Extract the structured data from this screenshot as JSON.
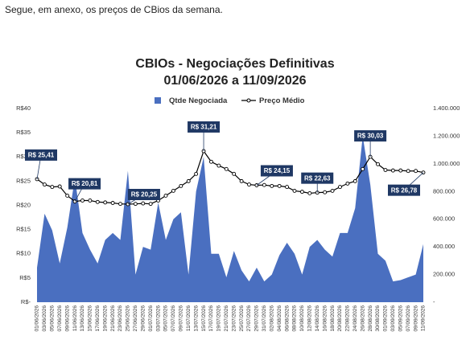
{
  "message": "Segue, em anexo, os preços de CBios da semana.",
  "chart_data": {
    "type": "combo",
    "title": "CBIOs - Negociações Definitivas",
    "subtitle": "01/06/2026 a 11/09/2026",
    "categories": [
      "01/06/2026",
      "03/06/2026",
      "05/06/2026",
      "07/06/2026",
      "09/06/2026",
      "11/06/2026",
      "13/06/2026",
      "15/06/2026",
      "17/06/2026",
      "19/06/2026",
      "21/06/2026",
      "23/06/2026",
      "25/06/2026",
      "27/06/2026",
      "29/06/2026",
      "01/07/2026",
      "03/07/2026",
      "05/07/2026",
      "07/07/2026",
      "09/07/2026",
      "11/07/2026",
      "13/07/2026",
      "15/07/2026",
      "17/07/2026",
      "19/07/2026",
      "21/07/2026",
      "23/07/2026",
      "25/07/2026",
      "27/07/2026",
      "29/07/2026",
      "31/07/2026",
      "02/08/2026",
      "04/08/2026",
      "06/08/2026",
      "08/08/2026",
      "10/08/2026",
      "12/08/2026",
      "14/08/2026",
      "16/08/2026",
      "18/08/2026",
      "20/08/2026",
      "22/08/2026",
      "24/08/2026",
      "26/08/2026",
      "28/08/2026",
      "30/08/2026",
      "01/09/2026",
      "03/09/2026",
      "05/09/2026",
      "07/09/2026",
      "09/09/2026",
      "11/09/2026"
    ],
    "series": [
      {
        "name": "Qtde Negociada",
        "type": "area",
        "axis": "y2",
        "color": "#4a6fc0",
        "values": [
          250000,
          640000,
          520000,
          280000,
          540000,
          900000,
          500000,
          380000,
          280000,
          450000,
          500000,
          450000,
          950000,
          200000,
          400000,
          380000,
          720000,
          450000,
          600000,
          650000,
          200000,
          800000,
          1050000,
          350000,
          350000,
          180000,
          370000,
          230000,
          150000,
          250000,
          150000,
          200000,
          340000,
          430000,
          350000,
          200000,
          400000,
          450000,
          380000,
          330000,
          500000,
          500000,
          680000,
          1200000,
          850000,
          350000,
          300000,
          150000,
          160000,
          180000,
          200000,
          420000
        ]
      },
      {
        "name": "Preço Médio",
        "type": "line",
        "axis": "y",
        "color": "#000000",
        "values": [
          25.41,
          24.3,
          23.8,
          23.9,
          22.0,
          20.81,
          21.0,
          21.0,
          20.7,
          20.6,
          20.5,
          20.3,
          20.25,
          20.3,
          20.4,
          20.3,
          21.0,
          22.0,
          23.0,
          24.0,
          25.0,
          26.5,
          31.21,
          29.0,
          28.2,
          27.5,
          26.5,
          25.0,
          24.3,
          24.15,
          24.2,
          24.0,
          24.0,
          23.8,
          23.0,
          22.8,
          22.5,
          22.63,
          22.7,
          23.0,
          23.8,
          24.5,
          25.0,
          27.5,
          30.03,
          28.5,
          27.3,
          27.2,
          27.2,
          27.1,
          27.1,
          26.78
        ],
        "value_labels": [
          "R$ 25,41",
          null,
          null,
          null,
          null,
          "R$ 20,81",
          null,
          null,
          null,
          null,
          null,
          null,
          "R$ 20,25",
          null,
          null,
          null,
          null,
          null,
          null,
          null,
          null,
          null,
          "R$ 31,21",
          null,
          null,
          null,
          null,
          null,
          null,
          "R$ 24,15",
          null,
          null,
          null,
          null,
          null,
          null,
          null,
          "R$ 22,63",
          null,
          null,
          null,
          null,
          null,
          null,
          "R$ 30,03",
          null,
          null,
          null,
          null,
          null,
          null,
          "R$ 26,78"
        ]
      }
    ],
    "ylim": [
      0,
      40
    ],
    "yticks": [
      {
        "value": 0,
        "label": "R$-"
      },
      {
        "value": 5,
        "label": "R$5"
      },
      {
        "value": 10,
        "label": "R$10"
      },
      {
        "value": 15,
        "label": "R$15"
      },
      {
        "value": 20,
        "label": "R$20"
      },
      {
        "value": 25,
        "label": "R$25"
      },
      {
        "value": 30,
        "label": "R$30"
      },
      {
        "value": 35,
        "label": "R$35"
      },
      {
        "value": 40,
        "label": "R$40"
      }
    ],
    "y2lim": [
      0,
      1400000
    ],
    "y2ticks": [
      {
        "value": 0,
        "label": "-"
      },
      {
        "value": 200000,
        "label": "200.000"
      },
      {
        "value": 400000,
        "label": "400.000"
      },
      {
        "value": 600000,
        "label": "600.000"
      },
      {
        "value": 800000,
        "label": "800.000"
      },
      {
        "value": 1000000,
        "label": "1.000.000"
      },
      {
        "value": 1200000,
        "label": "1.200.000"
      },
      {
        "value": 1400000,
        "label": "1.400.000"
      }
    ]
  }
}
